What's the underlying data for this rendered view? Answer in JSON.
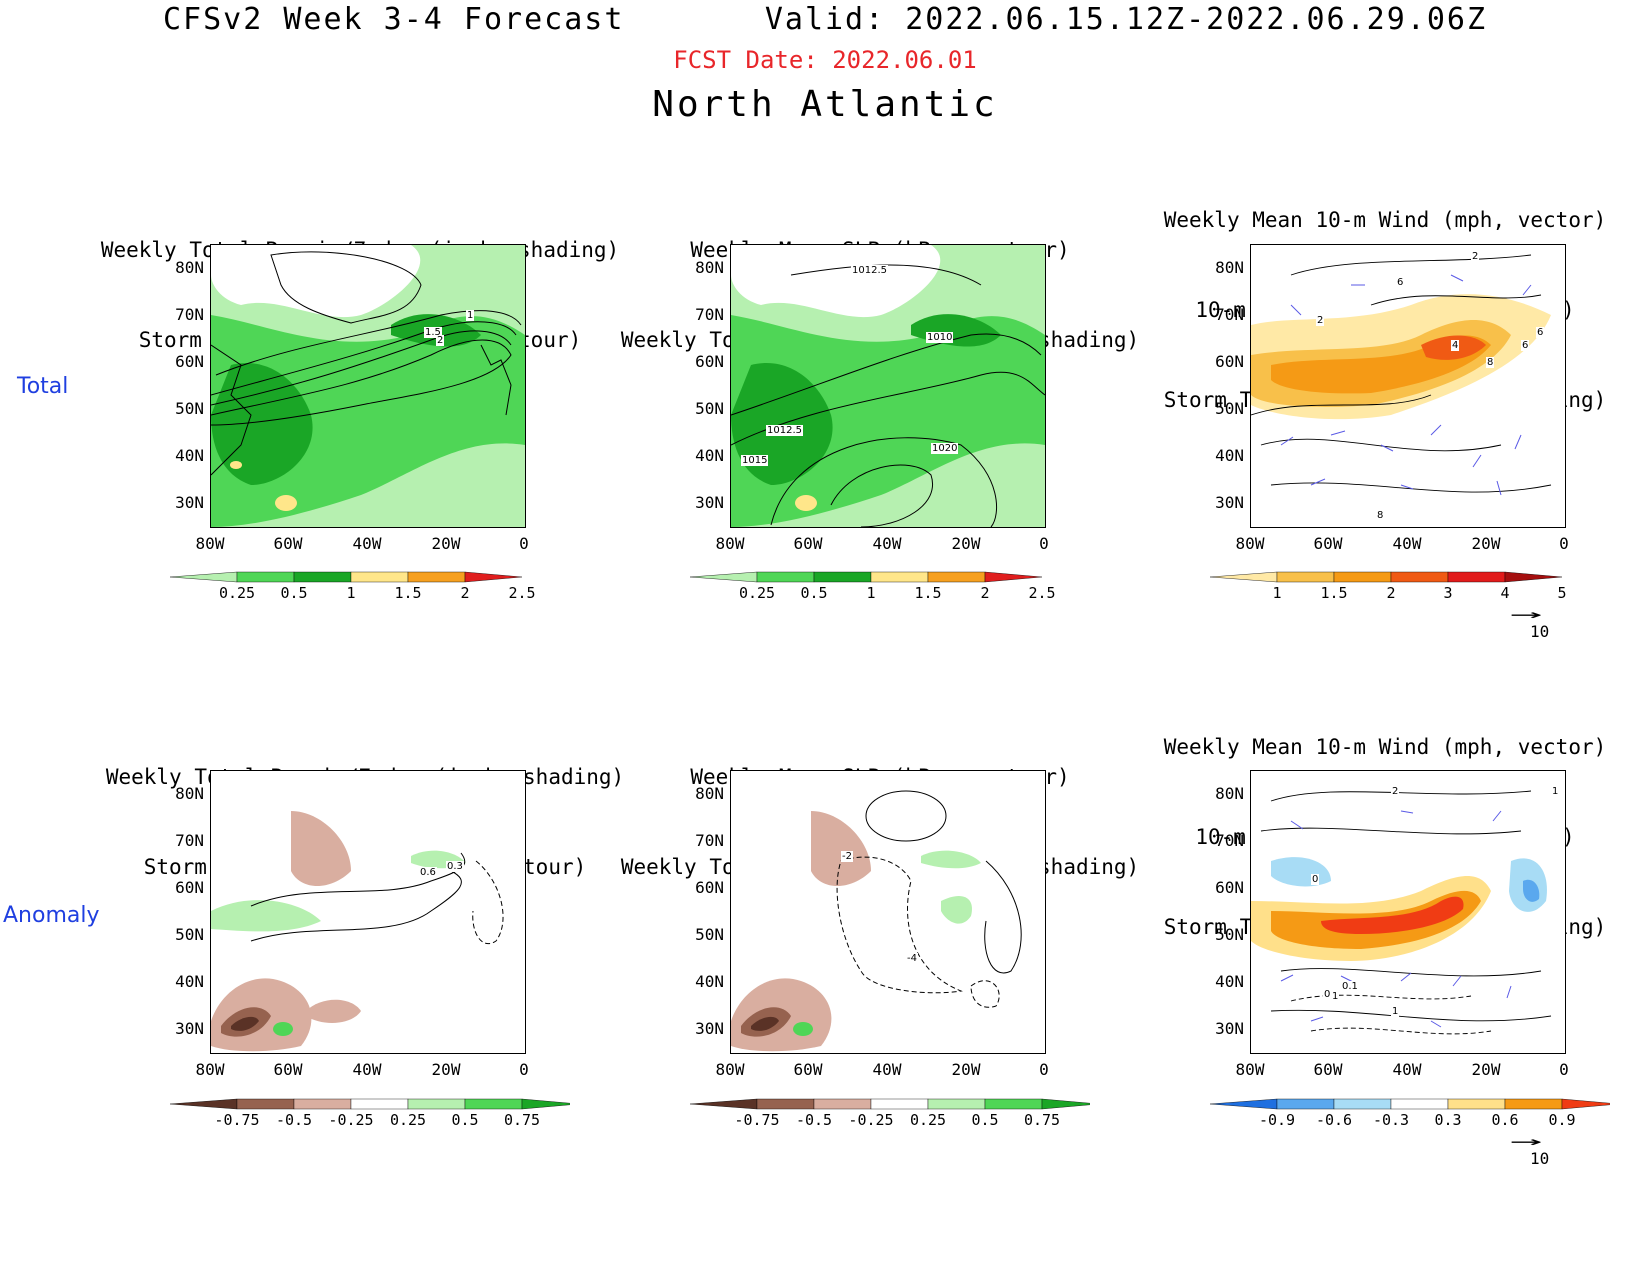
{
  "header": {
    "title": "CFSv2 Week 3-4 Forecast       Valid: 2022.06.15.12Z-2022.06.29.06Z",
    "fcst_date": "FCST Date: 2022.06.01",
    "region": "North Atlantic"
  },
  "row_labels": {
    "total": "Total",
    "anomaly": "Anomaly"
  },
  "panels": {
    "p1": {
      "line1": "Weekly Total Precip/7-day (inch, shading)",
      "line2": "Storm Track Density/7-day (contour)"
    },
    "p2": {
      "line1": "Weekly Mean SLP (hPa, contour)",
      "line2": "Weekly Total Precip/7-day (inch, shading)"
    },
    "p3": {
      "line1": "Weekly Mean 10-m Wind (mph, vector)",
      "line2": "10-m Wind Speed (mph, contour)",
      "line3": "Storm Track Density/7-day (shading)"
    },
    "p4": {
      "line1": "Weekly Total Precip/7-day (inch, shading)",
      "line2": "Storm Track Density/7-day (contour)"
    },
    "p5": {
      "line1": "Weekly Mean SLP (hPa, contour)",
      "line2": "Weekly Total Precip/7-day (inch, shading)"
    },
    "p6": {
      "line1": "Weekly Mean 10-m Wind (mph, vector)",
      "line2": "10-m Wind Speed (mph, contour)",
      "line3": "Storm Track Density/7-day (shading)"
    }
  },
  "axes": {
    "lat": [
      "80N",
      "70N",
      "60N",
      "50N",
      "40N",
      "30N"
    ],
    "lon": [
      "80W",
      "60W",
      "40W",
      "20W",
      "0"
    ]
  },
  "contour_labels": {
    "p1": [
      "1",
      "1.5",
      "2"
    ],
    "p2": [
      "1012.5",
      "1010",
      "1012.5",
      "1015",
      "1020"
    ],
    "p3": [
      "2",
      "6",
      "2",
      "4",
      "8",
      "6",
      "6",
      "8"
    ],
    "p4": [
      "0.3",
      "0.6"
    ],
    "p5": [
      "-2",
      "-4"
    ],
    "p6": [
      "2",
      "1",
      "0",
      "0",
      "0.1",
      "1",
      "1"
    ]
  },
  "colorbars": {
    "precip_total": {
      "labels": [
        "0.25",
        "0.5",
        "1",
        "1.5",
        "2",
        "2.5"
      ],
      "colors": [
        "#b6f0b0",
        "#4fd656",
        "#1aa626",
        "#ffe68a",
        "#f6a020",
        "#e01e1e"
      ]
    },
    "storm_total": {
      "labels": [
        "1",
        "1.5",
        "2",
        "3",
        "4",
        "5"
      ],
      "colors": [
        "#ffe9a6",
        "#f8c04a",
        "#f59a15",
        "#f05a14",
        "#e11b1b",
        "#a50f0f"
      ]
    },
    "precip_anom": {
      "labels": [
        "-0.75",
        "-0.5",
        "-0.25",
        "0.25",
        "0.5",
        "0.75"
      ],
      "colors": [
        "#5a3226",
        "#96624f",
        "#d9aea0",
        "#ffffff",
        "#b6f0b0",
        "#4fd656",
        "#1aa626"
      ]
    },
    "storm_anom": {
      "labels": [
        "-0.9",
        "-0.6",
        "-0.3",
        "0.3",
        "0.6",
        "0.9"
      ],
      "colors": [
        "#1e6fe0",
        "#5aa8ee",
        "#a8dcf5",
        "#ffffff",
        "#ffe08a",
        "#f59a15",
        "#f03c14"
      ]
    },
    "vector_ref": "10"
  }
}
